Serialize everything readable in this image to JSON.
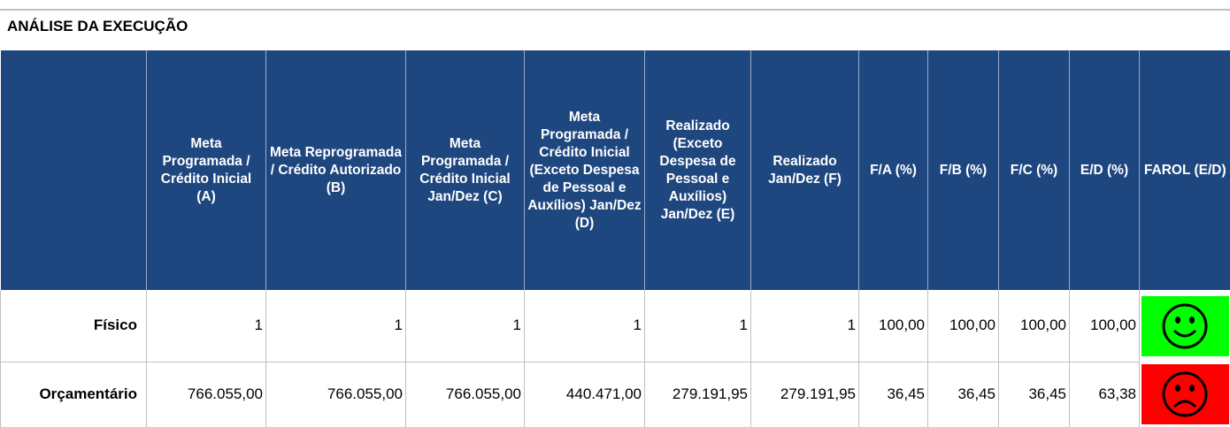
{
  "title": "ANÁLISE DA EXECUÇÃO",
  "table": {
    "headers": [
      "",
      "Meta Programada / Crédito Inicial (A)",
      "Meta Reprogramada / Crédito Autorizado (B)",
      "Meta Programada / Crédito Inicial Jan/Dez (C)",
      "Meta Programada / Crédito Inicial (Exceto Despesa de Pessoal e Auxílios) Jan/Dez (D)",
      "Realizado (Exceto Despesa de Pessoal e Auxílios) Jan/Dez (E)",
      "Realizado Jan/Dez (F)",
      "F/A (%)",
      "F/B (%)",
      "F/C (%)",
      "E/D (%)",
      "FAROL (E/D)"
    ],
    "rows": [
      [
        "Físico",
        "1",
        "1",
        "1",
        "1",
        "1",
        "1",
        "100,00",
        "100,00",
        "100,00",
        "100,00"
      ],
      [
        "Orçamentário",
        "766.055,00",
        "766.055,00",
        "766.055,00",
        "440.471,00",
        "279.191,95",
        "279.191,95",
        "36,45",
        "36,45",
        "36,45",
        "63,38"
      ]
    ]
  }
}
